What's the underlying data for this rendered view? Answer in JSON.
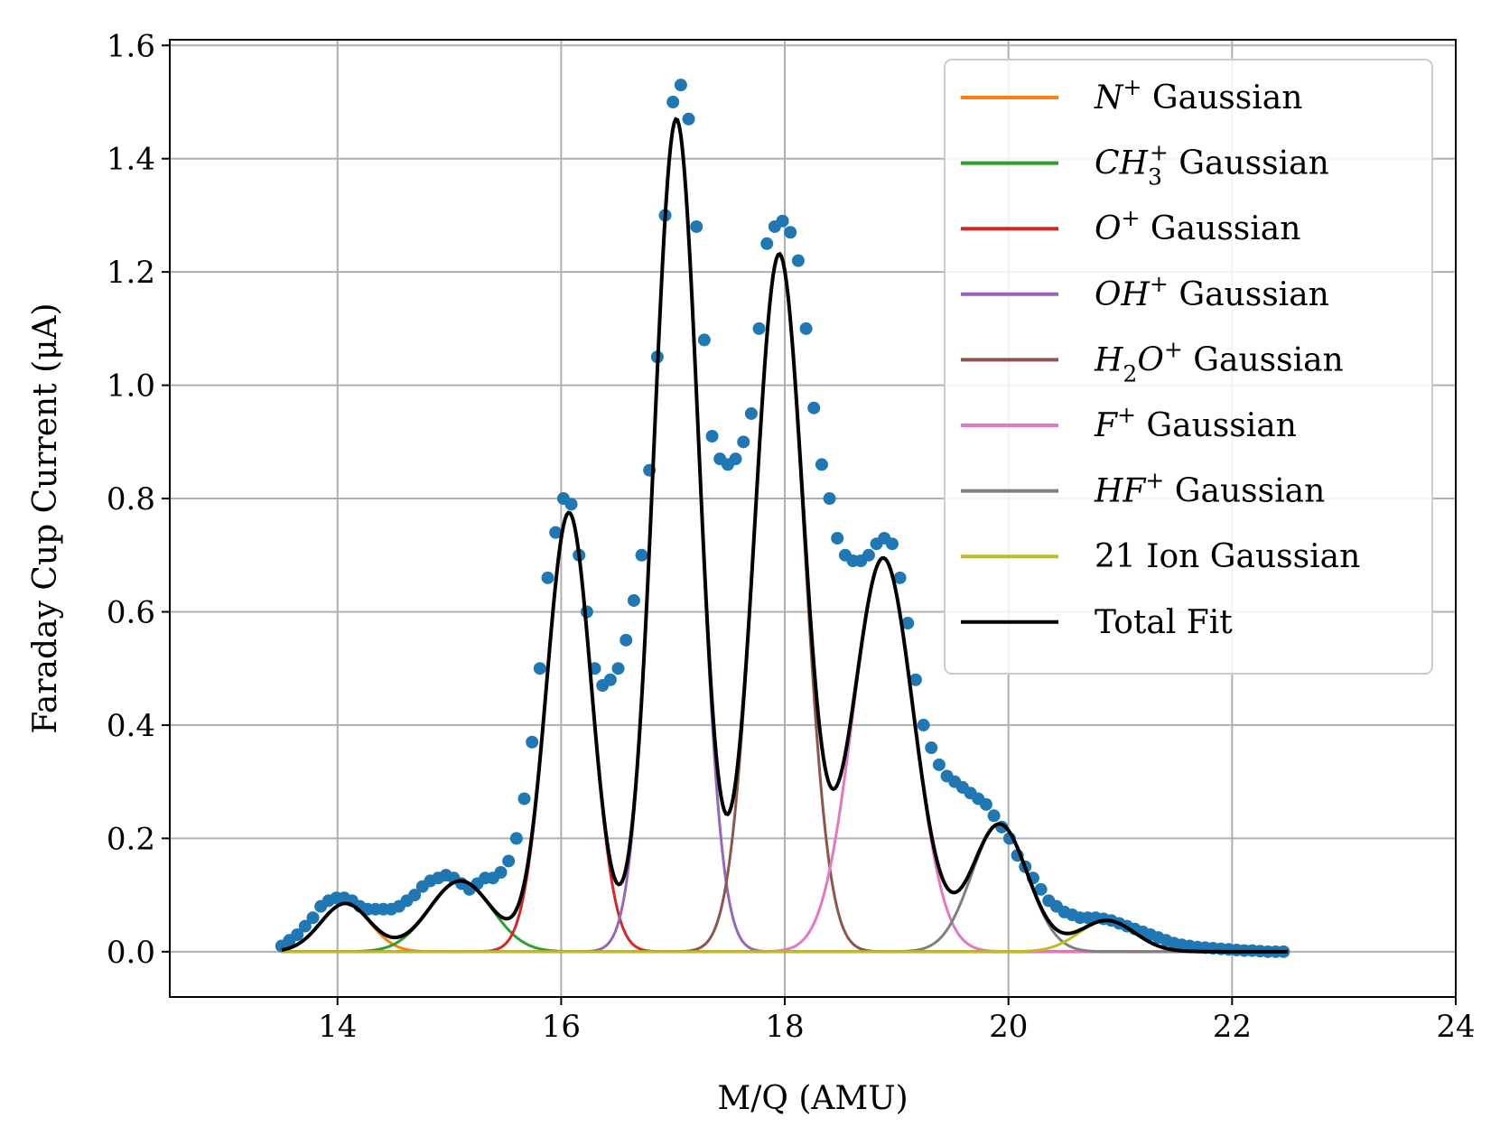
{
  "chart_data": {
    "type": "line",
    "xlabel": "M/Q (AMU)",
    "ylabel": "Faraday Cup Current (μA)",
    "xlim": [
      12.5,
      24
    ],
    "ylim": [
      -0.08,
      1.61
    ],
    "x_ticks": [
      14,
      16,
      18,
      20,
      22,
      24
    ],
    "x_tick_labels": [
      "14",
      "16",
      "18",
      "20",
      "22",
      "24"
    ],
    "y_ticks": [
      0.0,
      0.2,
      0.4,
      0.6,
      0.8,
      1.0,
      1.2,
      1.4,
      1.6
    ],
    "y_tick_labels": [
      "0.0",
      "0.2",
      "0.4",
      "0.6",
      "0.8",
      "1.0",
      "1.2",
      "1.4",
      "1.6"
    ],
    "grid": true,
    "legend_position": "top-right",
    "x_range": [
      13.5,
      22.5
    ],
    "gaussians": [
      {
        "name": "N+ Gaussian",
        "ion": "N",
        "sub": "",
        "sup": "+",
        "suffix": "Gaussian",
        "color": "#ff7f0e",
        "amp": 0.085,
        "mu": 14.07,
        "sigma": 0.22
      },
      {
        "name": "CH3+ Gaussian",
        "ion": "CH",
        "sub": "3",
        "sup": "+",
        "suffix": "Gaussian",
        "color": "#2ca02c",
        "amp": 0.125,
        "mu": 15.1,
        "sigma": 0.28
      },
      {
        "name": "O+ Gaussian",
        "ion": "O",
        "sub": "",
        "sup": "+",
        "suffix": "Gaussian",
        "color": "#d62728",
        "amp": 0.775,
        "mu": 16.07,
        "sigma": 0.2
      },
      {
        "name": "OH+ Gaussian",
        "ion": "OH",
        "sub": "",
        "sup": "+",
        "suffix": "Gaussian",
        "color": "#9467bd",
        "amp": 1.47,
        "mu": 17.03,
        "sigma": 0.2
      },
      {
        "name": "H2O+ Gaussian",
        "ion": "H",
        "sub": "2",
        "ion2": "O",
        "sup": "+",
        "suffix": "Gaussian",
        "color": "#8c564b",
        "amp": 1.23,
        "mu": 17.95,
        "sigma": 0.22
      },
      {
        "name": "F+ Gaussian",
        "ion": "F",
        "sub": "",
        "sup": "+",
        "suffix": "Gaussian",
        "color": "#e377c2",
        "amp": 0.695,
        "mu": 18.88,
        "sigma": 0.27
      },
      {
        "name": "HF+ Gaussian",
        "ion": "HF",
        "sub": "",
        "sup": "+",
        "suffix": "Gaussian",
        "color": "#7f7f7f",
        "amp": 0.225,
        "mu": 19.92,
        "sigma": 0.25
      },
      {
        "name": "21 Ion Gaussian",
        "ion": "",
        "sub": "",
        "sup": "",
        "suffix": "21 Ion Gaussian",
        "color": "#bcbd22",
        "amp": 0.055,
        "mu": 20.88,
        "sigma": 0.25
      }
    ],
    "total_fit": {
      "name": "Total Fit",
      "color": "#000000"
    },
    "measured": {
      "color": "#1f77b4",
      "x": [
        13.5,
        13.57,
        13.64,
        13.71,
        13.78,
        13.85,
        13.92,
        13.99,
        14.06,
        14.13,
        14.2,
        14.27,
        14.34,
        14.41,
        14.48,
        14.55,
        14.62,
        14.69,
        14.76,
        14.83,
        14.9,
        14.97,
        15.04,
        15.11,
        15.18,
        15.25,
        15.32,
        15.39,
        15.46,
        15.53,
        15.6,
        15.67,
        15.74,
        15.81,
        15.88,
        15.95,
        16.02,
        16.09,
        16.16,
        16.23,
        16.3,
        16.37,
        16.44,
        16.51,
        16.58,
        16.65,
        16.72,
        16.79,
        16.86,
        16.93,
        17.0,
        17.07,
        17.14,
        17.21,
        17.28,
        17.35,
        17.42,
        17.49,
        17.56,
        17.63,
        17.7,
        17.77,
        17.84,
        17.91,
        17.98,
        18.05,
        18.12,
        18.19,
        18.26,
        18.33,
        18.4,
        18.47,
        18.54,
        18.61,
        18.68,
        18.75,
        18.82,
        18.89,
        18.96,
        19.03,
        19.1,
        19.17,
        19.24,
        19.31,
        19.38,
        19.45,
        19.52,
        19.59,
        19.66,
        19.73,
        19.8,
        19.87,
        19.94,
        20.01,
        20.08,
        20.15,
        20.22,
        20.29,
        20.36,
        20.43,
        20.5,
        20.57,
        20.64,
        20.71,
        20.78,
        20.85,
        20.92,
        20.99,
        21.06,
        21.13,
        21.2,
        21.27,
        21.34,
        21.41,
        21.48,
        21.55,
        21.62,
        21.69,
        21.76,
        21.83,
        21.9,
        21.97,
        22.04,
        22.11,
        22.18,
        22.25,
        22.32,
        22.39,
        22.46
      ],
      "y": [
        0.01,
        0.02,
        0.03,
        0.045,
        0.06,
        0.08,
        0.09,
        0.095,
        0.095,
        0.09,
        0.08,
        0.075,
        0.075,
        0.075,
        0.075,
        0.08,
        0.09,
        0.1,
        0.115,
        0.125,
        0.13,
        0.135,
        0.13,
        0.12,
        0.11,
        0.12,
        0.13,
        0.13,
        0.14,
        0.16,
        0.2,
        0.27,
        0.37,
        0.5,
        0.66,
        0.74,
        0.8,
        0.79,
        0.7,
        0.6,
        0.5,
        0.47,
        0.48,
        0.5,
        0.55,
        0.62,
        0.7,
        0.85,
        1.05,
        1.3,
        1.5,
        1.53,
        1.47,
        1.28,
        1.08,
        0.91,
        0.87,
        0.86,
        0.87,
        0.9,
        0.95,
        1.1,
        1.25,
        1.28,
        1.29,
        1.27,
        1.22,
        1.1,
        0.96,
        0.86,
        0.8,
        0.73,
        0.7,
        0.69,
        0.69,
        0.7,
        0.72,
        0.73,
        0.72,
        0.66,
        0.58,
        0.48,
        0.4,
        0.36,
        0.33,
        0.31,
        0.3,
        0.29,
        0.28,
        0.27,
        0.26,
        0.24,
        0.22,
        0.2,
        0.17,
        0.15,
        0.13,
        0.11,
        0.09,
        0.08,
        0.07,
        0.065,
        0.06,
        0.06,
        0.06,
        0.058,
        0.055,
        0.05,
        0.045,
        0.04,
        0.035,
        0.03,
        0.025,
        0.02,
        0.015,
        0.012,
        0.01,
        0.008,
        0.007,
        0.006,
        0.005,
        0.004,
        0.003,
        0.002,
        0.002,
        0.001,
        0.0,
        0.0,
        0.0
      ]
    }
  }
}
